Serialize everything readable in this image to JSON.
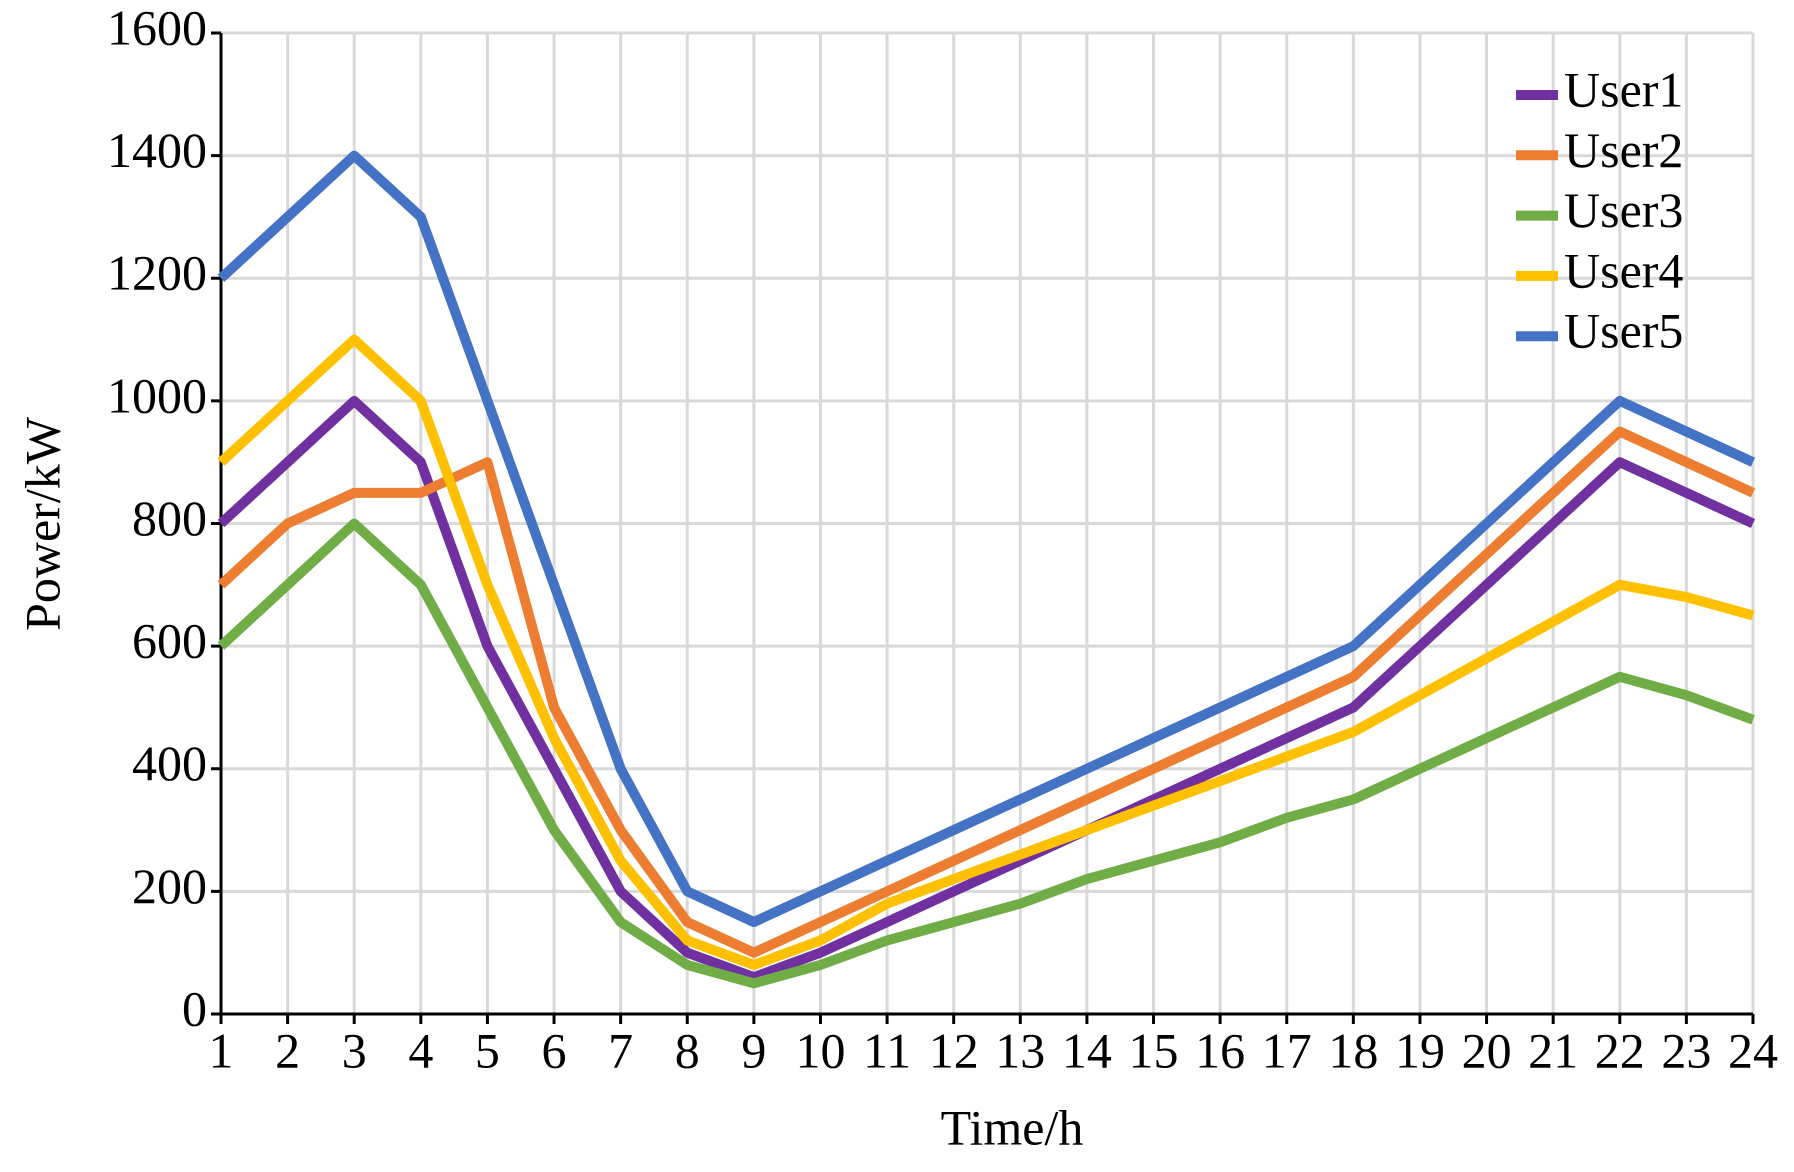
{
  "chart_data": {
    "type": "line",
    "x_label": "Time/h",
    "y_label": "Power/kW",
    "x": [
      1,
      2,
      3,
      4,
      5,
      6,
      7,
      8,
      9,
      10,
      11,
      12,
      13,
      14,
      15,
      16,
      17,
      18,
      19,
      20,
      21,
      22,
      23,
      24
    ],
    "xlim": [
      1,
      24
    ],
    "xticks": [
      1,
      2,
      3,
      4,
      5,
      6,
      7,
      8,
      9,
      10,
      11,
      12,
      13,
      14,
      15,
      16,
      17,
      18,
      19,
      20,
      21,
      22,
      23,
      24
    ],
    "ylim": [
      0,
      1600
    ],
    "yticks": [
      0,
      200,
      400,
      600,
      800,
      1000,
      1200,
      1400,
      1600
    ],
    "grid": true,
    "legend": "upper right",
    "series": [
      {
        "name": "User1",
        "color": "#7030a0",
        "values": [
          800,
          900,
          1000,
          900,
          600,
          400,
          200,
          100,
          60,
          100,
          150,
          200,
          250,
          300,
          350,
          400,
          450,
          500,
          600,
          700,
          800,
          900,
          850,
          800
        ]
      },
      {
        "name": "User2",
        "color": "#ed7d31",
        "values": [
          700,
          800,
          850,
          850,
          900,
          500,
          300,
          150,
          100,
          150,
          200,
          250,
          300,
          350,
          400,
          450,
          500,
          550,
          650,
          750,
          850,
          950,
          900,
          850
        ]
      },
      {
        "name": "User3",
        "color": "#70ad47",
        "values": [
          600,
          700,
          800,
          700,
          500,
          300,
          150,
          80,
          50,
          80,
          120,
          150,
          180,
          220,
          250,
          280,
          320,
          350,
          400,
          450,
          500,
          550,
          520,
          480
        ]
      },
      {
        "name": "User4",
        "color": "#ffc000",
        "values": [
          900,
          1000,
          1100,
          1000,
          700,
          450,
          250,
          120,
          80,
          120,
          180,
          220,
          260,
          300,
          340,
          380,
          420,
          460,
          520,
          580,
          640,
          700,
          680,
          650
        ]
      },
      {
        "name": "User5",
        "color": "#4472c4",
        "values": [
          1200,
          1300,
          1400,
          1300,
          1000,
          700,
          400,
          200,
          150,
          200,
          250,
          300,
          350,
          400,
          450,
          500,
          550,
          600,
          700,
          800,
          900,
          1000,
          950,
          900
        ]
      }
    ]
  }
}
